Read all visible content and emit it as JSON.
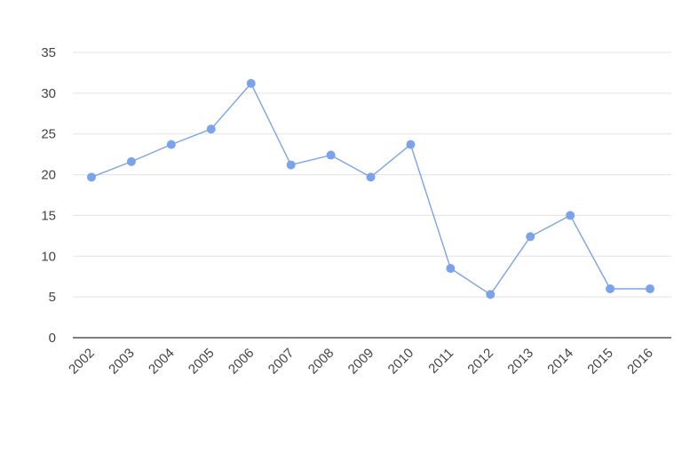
{
  "chart_data": {
    "type": "line",
    "title": "",
    "xlabel": "",
    "ylabel": "",
    "categories": [
      "2002",
      "2003",
      "2004",
      "2005",
      "2006",
      "2007",
      "2008",
      "2009",
      "2010",
      "2011",
      "2012",
      "2013",
      "2014",
      "2015",
      "2016"
    ],
    "series": [
      {
        "values": [
          19.7,
          21.6,
          23.7,
          25.6,
          31.2,
          21.2,
          22.4,
          19.7,
          23.7,
          8.5,
          5.3,
          12.4,
          15.0,
          6.0,
          6.0
        ],
        "color": "#7ba3ec"
      }
    ],
    "ylim": [
      0,
      35
    ],
    "yticks": [
      "0",
      "5",
      "10",
      "15",
      "20",
      "25",
      "30",
      "35"
    ],
    "grid": true,
    "legend": "none"
  }
}
